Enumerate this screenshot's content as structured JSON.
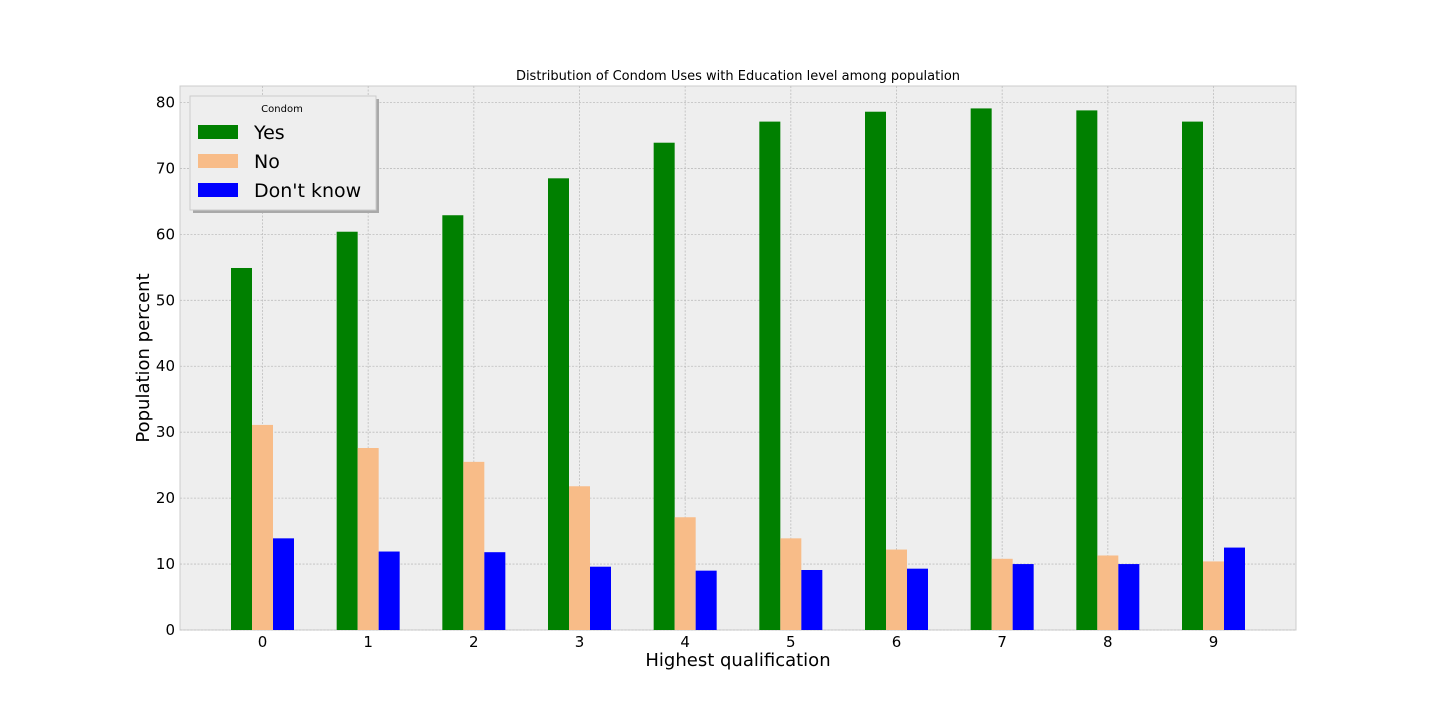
{
  "chart_data": {
    "type": "bar",
    "title": "Distribution of Condom Uses with Education level among population",
    "xlabel": "Highest qualification",
    "ylabel": "Population percent",
    "categories": [
      "0",
      "1",
      "2",
      "3",
      "4",
      "5",
      "6",
      "7",
      "8",
      "9"
    ],
    "yticks": [
      "0",
      "10",
      "20",
      "30",
      "40",
      "50",
      "60",
      "70",
      "80"
    ],
    "ylim": [
      0,
      82.5
    ],
    "grid": true,
    "legend": {
      "title": "Condom",
      "placement": "top-left"
    },
    "series": [
      {
        "name": "Yes",
        "color": "#008000",
        "values": [
          54.9,
          60.4,
          62.9,
          68.5,
          73.9,
          77.1,
          78.6,
          79.1,
          78.8,
          77.1
        ]
      },
      {
        "name": "No",
        "color": "#f8bc88",
        "values": [
          31.1,
          27.6,
          25.5,
          21.8,
          17.1,
          13.9,
          12.2,
          10.8,
          11.3,
          10.4
        ]
      },
      {
        "name": "Don't know",
        "color": "#0000ff",
        "values": [
          13.9,
          11.9,
          11.8,
          9.6,
          9.0,
          9.1,
          9.3,
          10.0,
          10.0,
          12.5
        ]
      }
    ]
  }
}
